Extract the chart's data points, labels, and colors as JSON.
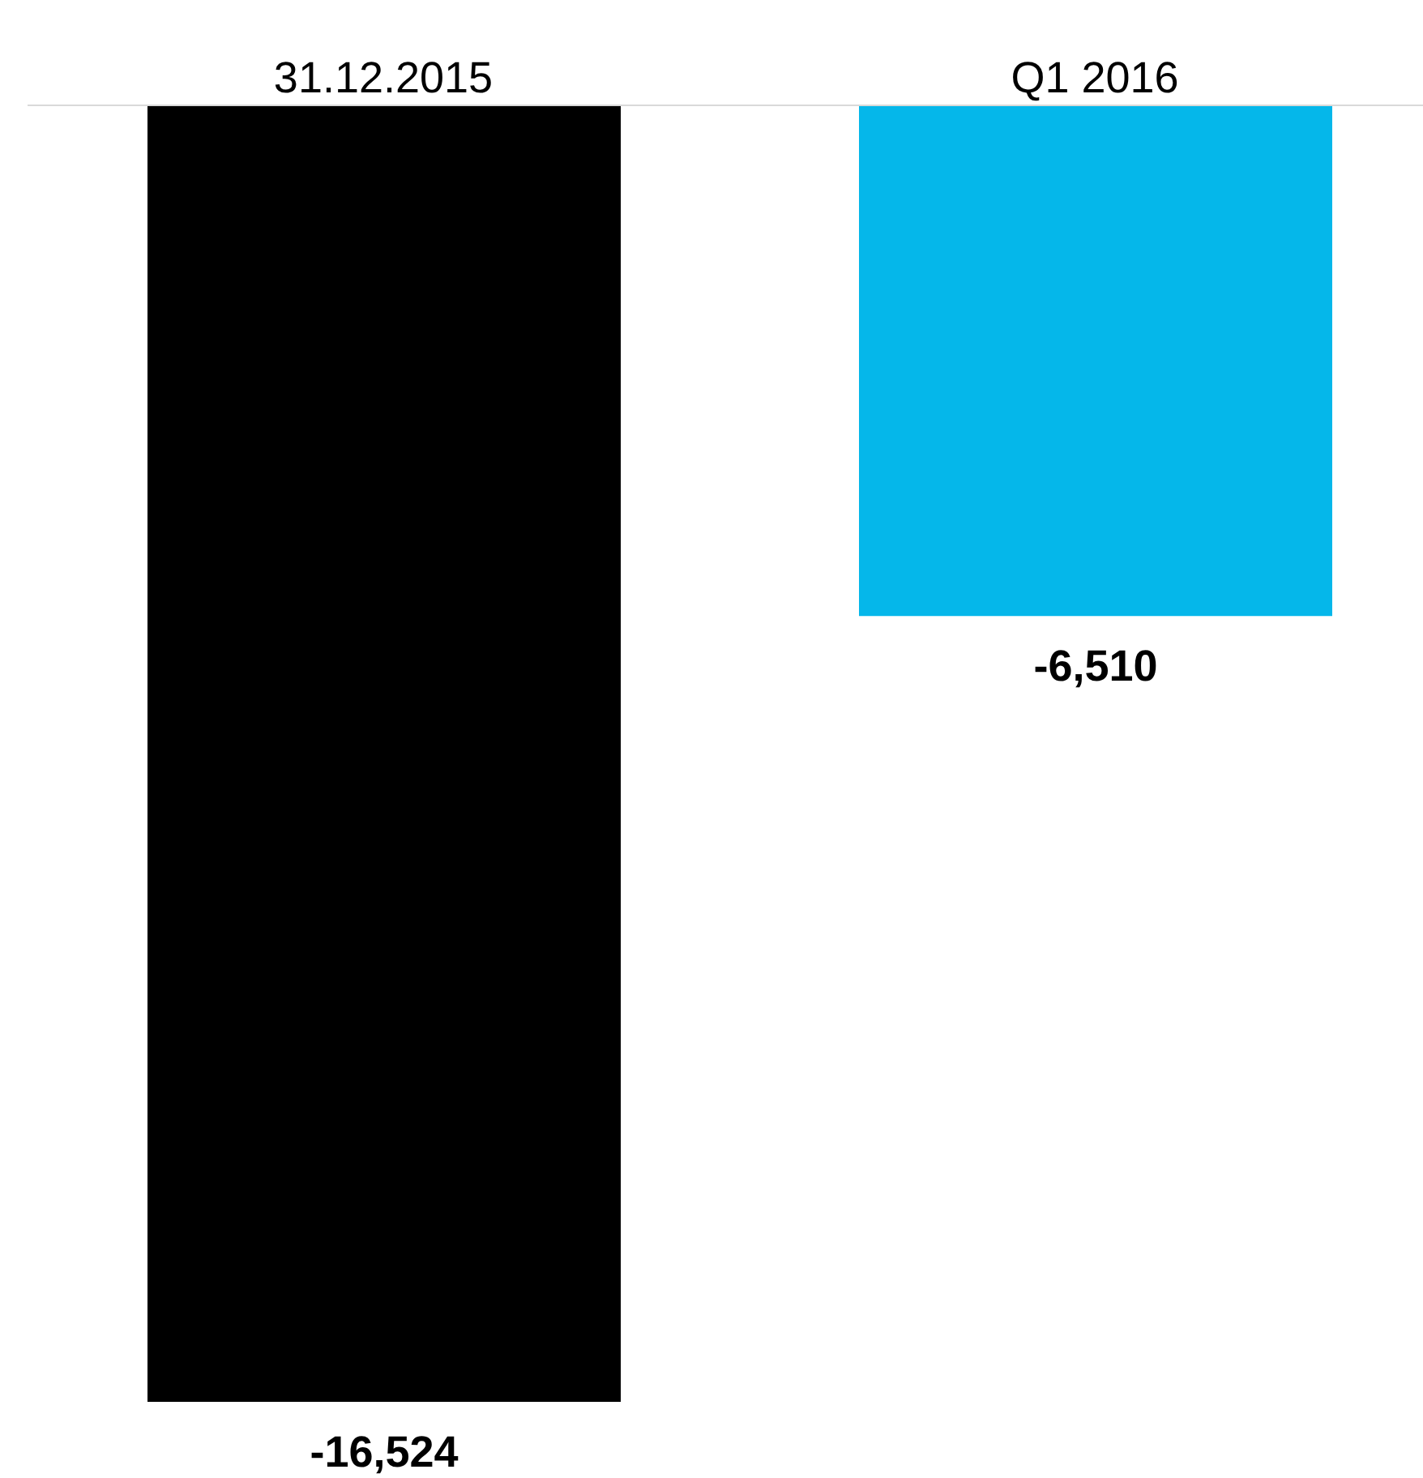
{
  "chart_data": {
    "type": "bar",
    "categories": [
      "31.12.2015",
      "Q1 2016"
    ],
    "values": [
      -16524,
      -6510
    ],
    "value_labels": [
      "-16,524",
      "-6,510"
    ],
    "colors": [
      "#000000",
      "#05b7ea"
    ]
  }
}
